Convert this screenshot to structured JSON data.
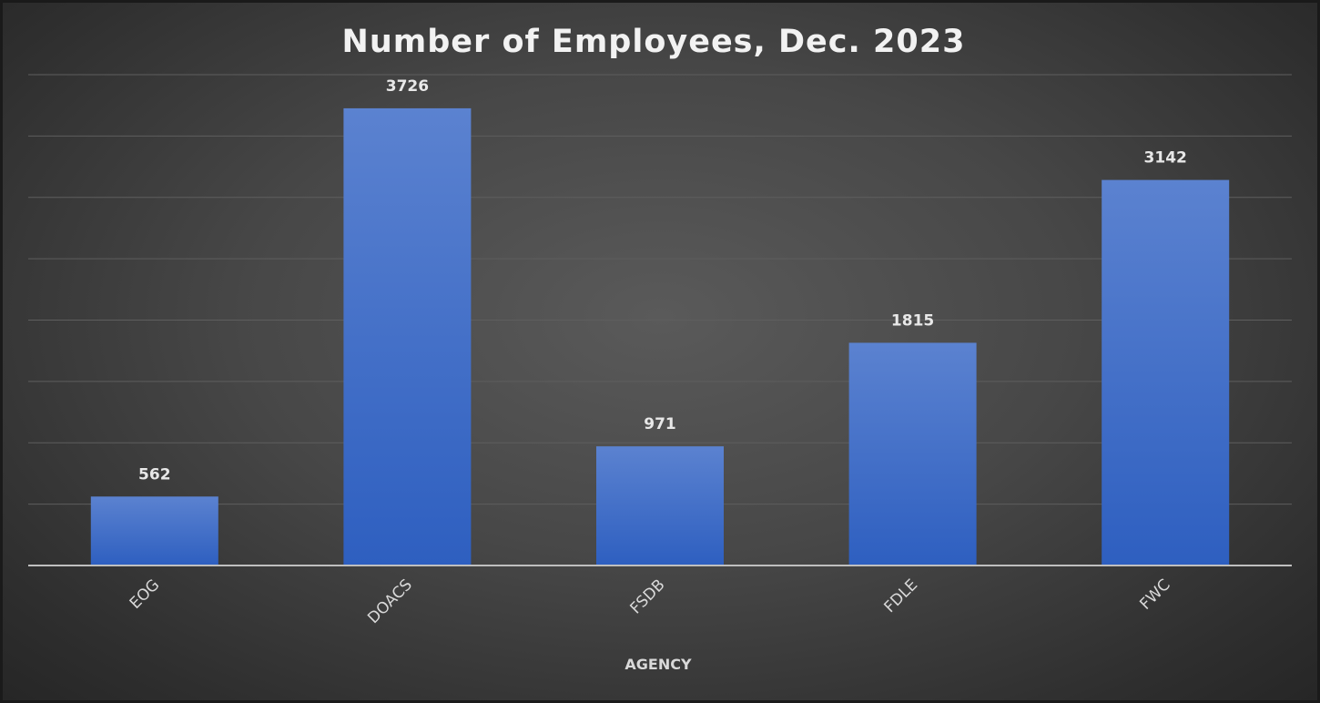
{
  "chart_data": {
    "type": "bar",
    "title": "Number of Employees, Dec. 2023",
    "xlabel": "AGENCY",
    "ylabel": "",
    "categories": [
      "EOG",
      "DOACS",
      "FSDB",
      "FDLE",
      "FWC"
    ],
    "values": [
      562,
      3726,
      971,
      1815,
      3142
    ],
    "ylim": [
      0,
      4000
    ],
    "grid": true,
    "legend": "none",
    "colors": {
      "bar_top": "#5b82d0",
      "bar_bottom": "#2e5fc0",
      "gridline": "#5e5e5e",
      "axis": "#bfbfbf"
    }
  }
}
